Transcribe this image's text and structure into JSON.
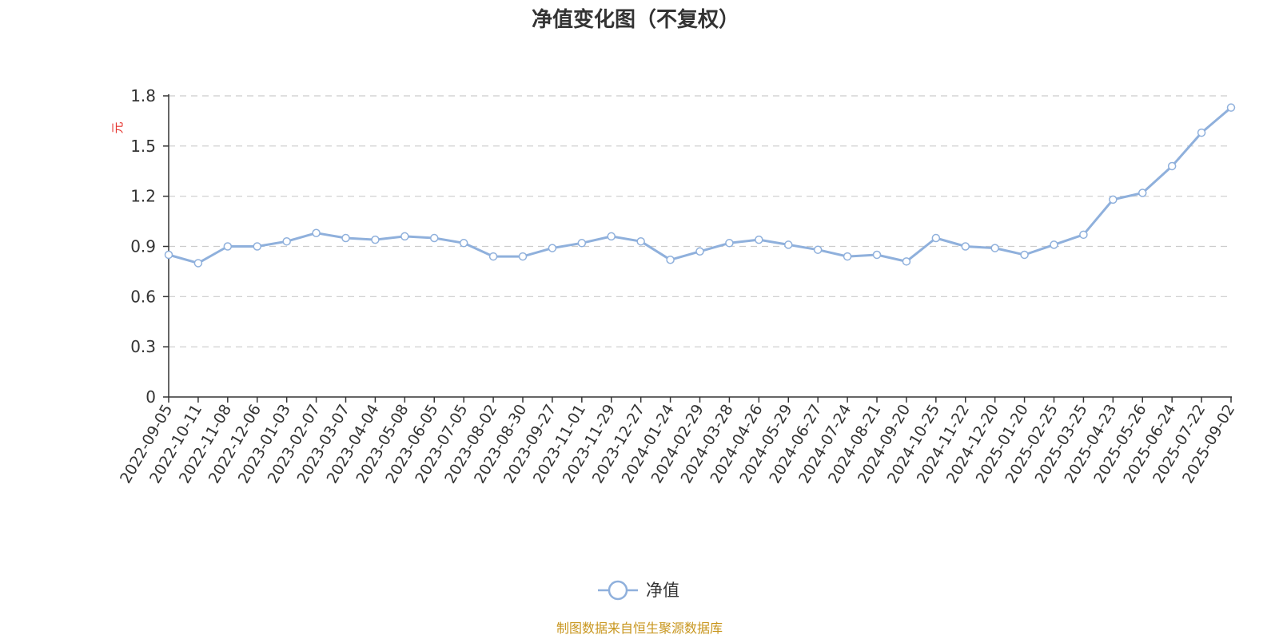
{
  "chart_data": {
    "type": "line",
    "title": "净值变化图（不复权）",
    "ylabel": "元",
    "xlabel": "",
    "ylim": [
      0,
      1.8
    ],
    "yticks": [
      "0",
      "0.3",
      "0.6",
      "0.9",
      "1.2",
      "1.5",
      "1.8"
    ],
    "grid": true,
    "legend": "bottom-center",
    "x": [
      "2022-09-05",
      "2022-10-11",
      "2022-11-08",
      "2022-12-06",
      "2023-01-03",
      "2023-02-07",
      "2023-03-07",
      "2023-04-04",
      "2023-05-08",
      "2023-06-05",
      "2023-07-05",
      "2023-08-02",
      "2023-08-30",
      "2023-09-27",
      "2023-11-01",
      "2023-11-29",
      "2023-12-27",
      "2024-01-24",
      "2024-02-29",
      "2024-03-28",
      "2024-04-26",
      "2024-05-29",
      "2024-06-27",
      "2024-07-24",
      "2024-08-21",
      "2024-09-20",
      "2024-10-25",
      "2024-11-22",
      "2024-12-20",
      "2025-01-20",
      "2025-02-25",
      "2025-03-25",
      "2025-04-23",
      "2025-05-26",
      "2025-06-24",
      "2025-07-22",
      "2025-09-02"
    ],
    "series": [
      {
        "name": "净值",
        "color": "#8fb0dc",
        "values": [
          0.85,
          0.8,
          0.9,
          0.9,
          0.93,
          0.98,
          0.95,
          0.94,
          0.96,
          0.95,
          0.92,
          0.84,
          0.84,
          0.89,
          0.92,
          0.96,
          0.93,
          0.82,
          0.87,
          0.92,
          0.94,
          0.91,
          0.88,
          0.84,
          0.85,
          0.81,
          0.95,
          0.9,
          0.89,
          0.85,
          0.91,
          0.97,
          1.18,
          1.22,
          1.38,
          1.58,
          1.73
        ]
      }
    ]
  },
  "source_note": "制图数据来自恒生聚源数据库",
  "colors": {
    "line": "#8fb0dc",
    "grid": "#cccccc",
    "axis": "#333333",
    "unit": "#e5322d",
    "source": "#c8961e"
  }
}
